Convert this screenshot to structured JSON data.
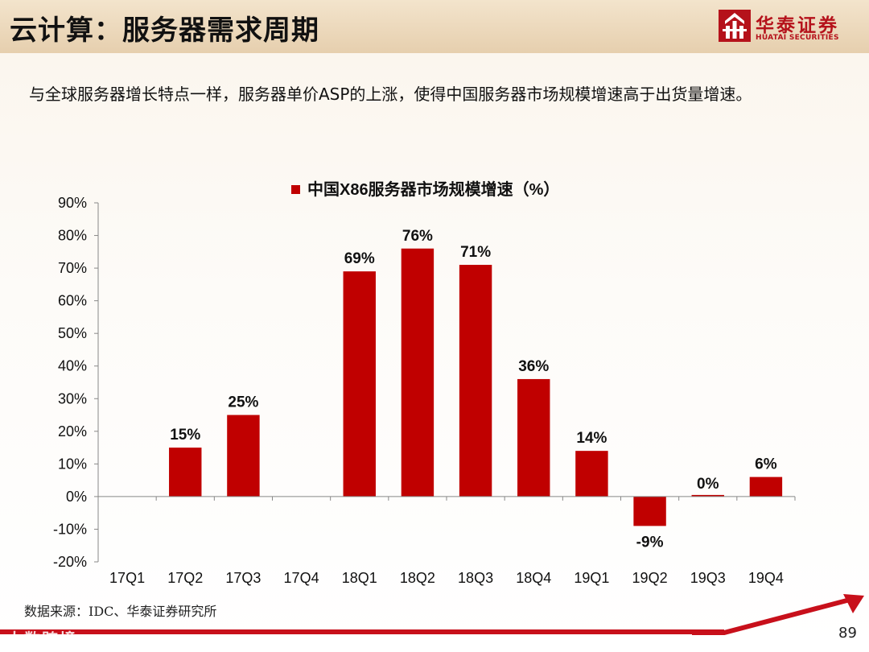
{
  "slide": {
    "title": "云计算：服务器需求周期",
    "intro": "与全球服务器增长特点一样，服务器单价ASP的上涨，使得中国服务器市场规模增速高于出货量增速。",
    "source": "数据来源：IDC、华泰证券研究所",
    "page_number": "89",
    "watermark": "大数跨境"
  },
  "logo": {
    "name_cn": "华泰证券",
    "name_en": "HUATAI SECURITIES"
  },
  "colors": {
    "bar": "#c00000",
    "brand": "#b5121b",
    "axis": "#888888"
  },
  "chart_data": {
    "type": "bar",
    "title": "",
    "legend": "中国X86服务器市场规模增速（%）",
    "legend_position": "top",
    "categories": [
      "17Q1",
      "17Q2",
      "17Q3",
      "17Q4",
      "18Q1",
      "18Q2",
      "18Q3",
      "18Q4",
      "19Q1",
      "19Q2",
      "19Q3",
      "19Q4"
    ],
    "values": [
      null,
      15,
      25,
      null,
      69,
      76,
      71,
      36,
      14,
      -9,
      0,
      6
    ],
    "data_labels": [
      "",
      "15%",
      "25%",
      "",
      "69%",
      "76%",
      "71%",
      "36%",
      "14%",
      "-9%",
      "0%",
      "6%"
    ],
    "ylim": [
      -20,
      90
    ],
    "yticks": [
      -20,
      -10,
      0,
      10,
      20,
      30,
      40,
      50,
      60,
      70,
      80,
      90
    ],
    "ytick_labels": [
      "-20%",
      "-10%",
      "0%",
      "10%",
      "20%",
      "30%",
      "40%",
      "50%",
      "60%",
      "70%",
      "80%",
      "90%"
    ],
    "xlabel": "",
    "ylabel": "",
    "grid": false
  }
}
